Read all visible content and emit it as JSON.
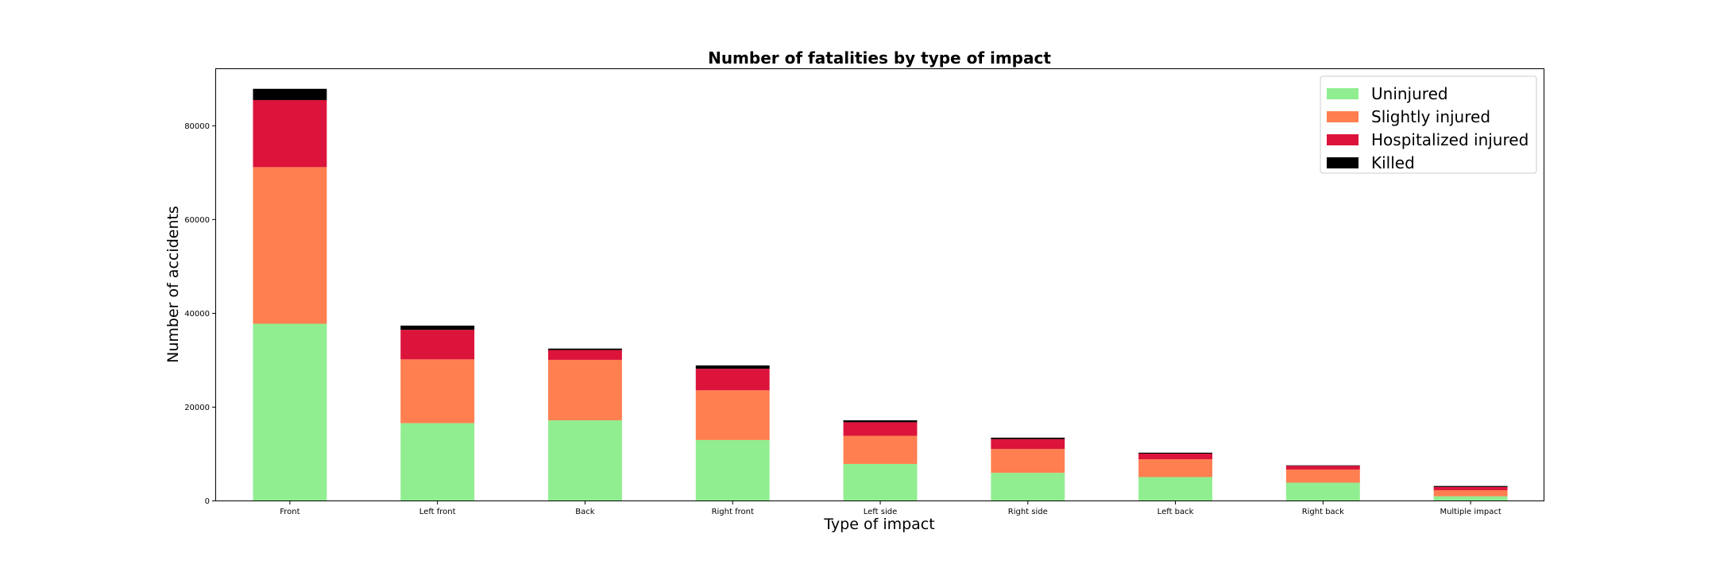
{
  "chart_data": {
    "type": "bar",
    "stacked": true,
    "title": "Number of fatalities by type of impact",
    "xlabel": "Type of impact",
    "ylabel": "Number of accidents",
    "ylim": [
      0,
      92000
    ],
    "yticks": [
      0,
      20000,
      40000,
      60000,
      80000
    ],
    "grid": false,
    "legend_position": "top-right",
    "categories": [
      "Front",
      "Left front",
      "Back",
      "Right front",
      "Left side",
      "Right side",
      "Left back",
      "Right back",
      "Multiple impact"
    ],
    "series": [
      {
        "name": "Uninjured",
        "color": "#90ee90",
        "values": [
          37700,
          16500,
          17100,
          12900,
          7800,
          5900,
          5000,
          3800,
          900
        ]
      },
      {
        "name": "Slightly injured",
        "color": "#ff7f50",
        "values": [
          33400,
          13600,
          12900,
          10600,
          6000,
          5100,
          3800,
          2800,
          1300
        ]
      },
      {
        "name": "Hospitalized injured",
        "color": "#dc143c",
        "values": [
          14300,
          6300,
          2100,
          4600,
          2900,
          2100,
          1200,
          800,
          700
        ]
      },
      {
        "name": "Killed",
        "color": "#000000",
        "values": [
          2400,
          900,
          300,
          700,
          400,
          300,
          200,
          100,
          200
        ]
      }
    ]
  }
}
